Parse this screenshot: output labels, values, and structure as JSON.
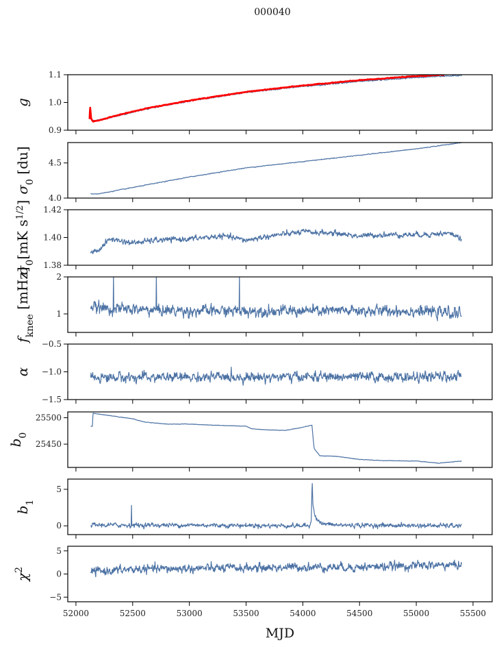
{
  "chart_data": {
    "type": "line",
    "title": "000040",
    "xlabel": "MJD",
    "xlim": [
      51928,
      55669
    ],
    "xticks": [
      52000,
      52500,
      53000,
      53500,
      54000,
      54500,
      55000,
      55500
    ],
    "xtick_labels": [
      "52000",
      "52500",
      "53000",
      "53500",
      "54000",
      "54500",
      "55000",
      "55500"
    ],
    "grid": false,
    "line_color": "#4c72a4",
    "fit_color": "#ff0000",
    "panels": [
      {
        "id": "g",
        "ylabel": "g",
        "ylim": [
          0.9,
          1.1
        ],
        "yticks": [
          0.9,
          1.0,
          1.1
        ],
        "ytick_labels": [
          "0.9",
          "1.0",
          "1.1"
        ],
        "series": [
          {
            "name": "g",
            "knots_x": [
              52130,
              52170,
              52300,
              52600,
              53000,
              53500,
              54000,
              54500,
              55000,
              55400
            ],
            "knots_y": [
              0.94,
              0.934,
              0.945,
              0.975,
              1.005,
              1.036,
              1.058,
              1.076,
              1.09,
              1.098
            ],
            "noise": 0.002
          },
          {
            "name": "g fit",
            "color_key": "fit_color",
            "knots_x": [
              52120,
              52125,
              52135,
              52150,
              52200,
              52300,
              52600,
              53000,
              53500,
              54000,
              54500,
              55000,
              55250
            ],
            "knots_y": [
              0.94,
              0.985,
              0.94,
              0.932,
              0.935,
              0.947,
              0.977,
              1.007,
              1.038,
              1.061,
              1.08,
              1.095,
              1.1
            ],
            "noise": 0.001
          }
        ]
      },
      {
        "id": "sigma0-du",
        "ylabel": "σ0 [du]",
        "ylim": [
          4.0,
          4.79
        ],
        "yticks": [
          4.0,
          4.5
        ],
        "ytick_labels": [
          "4.0",
          "4.5"
        ],
        "series": [
          {
            "name": "sigma0 du",
            "knots_x": [
              52130,
              52200,
              52500,
              53000,
              53500,
              54000,
              54500,
              55000,
              55400
            ],
            "knots_y": [
              4.06,
              4.06,
              4.15,
              4.3,
              4.43,
              4.52,
              4.61,
              4.7,
              4.79
            ],
            "noise": 0.004
          }
        ]
      },
      {
        "id": "sigma0-mk",
        "ylabel": "σ0[mK s^1/2]",
        "ylim": [
          1.38,
          1.42
        ],
        "yticks": [
          1.38,
          1.4,
          1.42
        ],
        "ytick_labels": [
          "1.38",
          "1.40",
          "1.42"
        ],
        "series": [
          {
            "name": "sigma0 mK",
            "knots_x": [
              52130,
              52200,
              52300,
              52500,
              52700,
              53000,
              53300,
              53500,
              53700,
              54000,
              54300,
              54500,
              54700,
              55000,
              55300,
              55400
            ],
            "knots_y": [
              1.389,
              1.391,
              1.399,
              1.396,
              1.398,
              1.399,
              1.401,
              1.398,
              1.401,
              1.404,
              1.403,
              1.401,
              1.402,
              1.402,
              1.403,
              1.399
            ],
            "noise": 0.0016
          }
        ]
      },
      {
        "id": "fknee",
        "ylabel": "fknee [mHz]",
        "ylim": [
          0.5,
          2.0
        ],
        "yticks": [
          1,
          2
        ],
        "ytick_labels": [
          "1",
          "2"
        ],
        "series": [
          {
            "name": "fknee",
            "knots_x": [
              52130,
              52300,
              53000,
              54000,
              55000,
              55400
            ],
            "knots_y": [
              1.18,
              1.14,
              1.08,
              1.08,
              1.08,
              1.0
            ],
            "noise": 0.12,
            "spikes": [
              [
                52330,
                2.05
              ],
              [
                52710,
                2.05
              ],
              [
                53440,
                2.05
              ]
            ]
          }
        ]
      },
      {
        "id": "alpha",
        "ylabel": "α",
        "ylim": [
          -1.5,
          -0.5
        ],
        "yticks": [
          -1.5,
          -1.0,
          -0.5
        ],
        "ytick_labels": [
          "−1.5",
          "−1.0",
          "−0.5"
        ],
        "series": [
          {
            "name": "alpha",
            "knots_x": [
              52130,
              53000,
              54000,
              55000,
              55400
            ],
            "knots_y": [
              -1.1,
              -1.1,
              -1.09,
              -1.1,
              -1.08
            ],
            "noise": 0.07
          }
        ]
      },
      {
        "id": "b0",
        "ylabel": "b0",
        "ylim": [
          25406,
          25511
        ],
        "yticks": [
          25450,
          25500
        ],
        "ytick_labels": [
          "25450",
          "25500"
        ],
        "series": [
          {
            "name": "b0",
            "knots_x": [
              52130,
              52145,
              52150,
              52170,
              52300,
              52500,
              52600,
              52800,
              53000,
              53200,
              53500,
              53550,
              53700,
              53850,
              54000,
              54080,
              54100,
              54150,
              54300,
              54500,
              54700,
              55000,
              55200,
              55400
            ],
            "knots_y": [
              25484,
              25484,
              25508,
              25508,
              25504,
              25498,
              25492,
              25488,
              25488,
              25486,
              25484,
              25479,
              25477,
              25476,
              25482,
              25486,
              25442,
              25428,
              25427,
              25421,
              25419,
              25418,
              25414,
              25418
            ],
            "noise": 0.35
          }
        ]
      },
      {
        "id": "b1",
        "ylabel": "b1",
        "ylim": [
          -1.2,
          6.4
        ],
        "yticks": [
          0,
          5
        ],
        "ytick_labels": [
          "0",
          "5"
        ],
        "series": [
          {
            "name": "b1",
            "knots_x": [
              52130,
              53000,
              54060,
              54075,
              54082,
              54090,
              54110,
              54160,
              54300,
              55400
            ],
            "knots_y": [
              0.1,
              0.1,
              0.0,
              1.0,
              6.2,
              3.0,
              1.2,
              0.3,
              0.1,
              0.0
            ],
            "noise": 0.25,
            "spikes": [
              [
                52490,
                2.8
              ]
            ]
          }
        ]
      },
      {
        "id": "chi2",
        "ylabel": "χ^2",
        "ylim": [
          -6,
          6
        ],
        "yticks": [
          -5,
          0,
          5
        ],
        "ytick_labels": [
          "−5",
          "0",
          "5"
        ],
        "series": [
          {
            "name": "chi2",
            "knots_x": [
              52130,
              52500,
              53000,
              53500,
              54000,
              54500,
              55000,
              55400
            ],
            "knots_y": [
              0.5,
              1.0,
              1.2,
              1.3,
              1.5,
              1.5,
              1.8,
              2.0
            ],
            "noise": 0.75
          }
        ]
      }
    ]
  }
}
